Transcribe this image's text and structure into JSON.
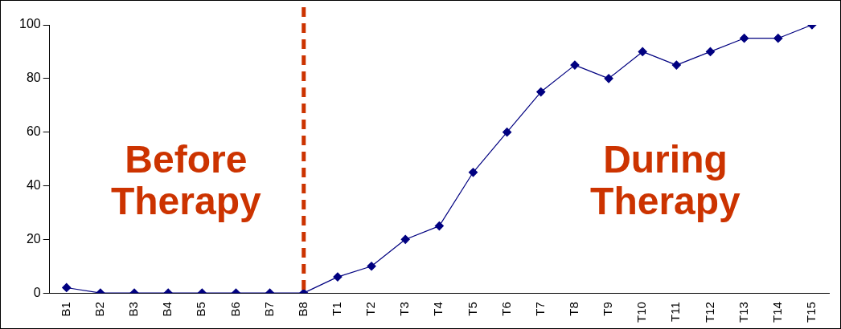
{
  "chart_data": {
    "type": "line",
    "categories": [
      "B1",
      "B2",
      "B3",
      "B4",
      "B5",
      "B6",
      "B7",
      "B8",
      "T1",
      "T2",
      "T3",
      "T4",
      "T5",
      "T6",
      "T7",
      "T8",
      "T9",
      "T10",
      "T11",
      "T12",
      "T13",
      "T14",
      "T15"
    ],
    "series": [
      {
        "color": "#000080",
        "values": [
          2,
          0,
          0,
          0,
          0,
          0,
          0,
          0,
          6,
          10,
          20,
          25,
          45,
          60,
          75,
          85,
          80,
          90,
          85,
          90,
          95,
          95,
          100
        ]
      }
    ],
    "ylim": [
      0,
      100
    ],
    "yticks": [
      0,
      20,
      40,
      60,
      80,
      100
    ],
    "grid": false,
    "legend": false,
    "marker": "diamond",
    "line_style": "solid",
    "ref_lines": [
      {
        "axis": "x",
        "value": "B8",
        "color": "#cc3300",
        "line_style": "dashed"
      }
    ],
    "annotations": [
      "Before Therapy",
      "During Therapy"
    ]
  }
}
